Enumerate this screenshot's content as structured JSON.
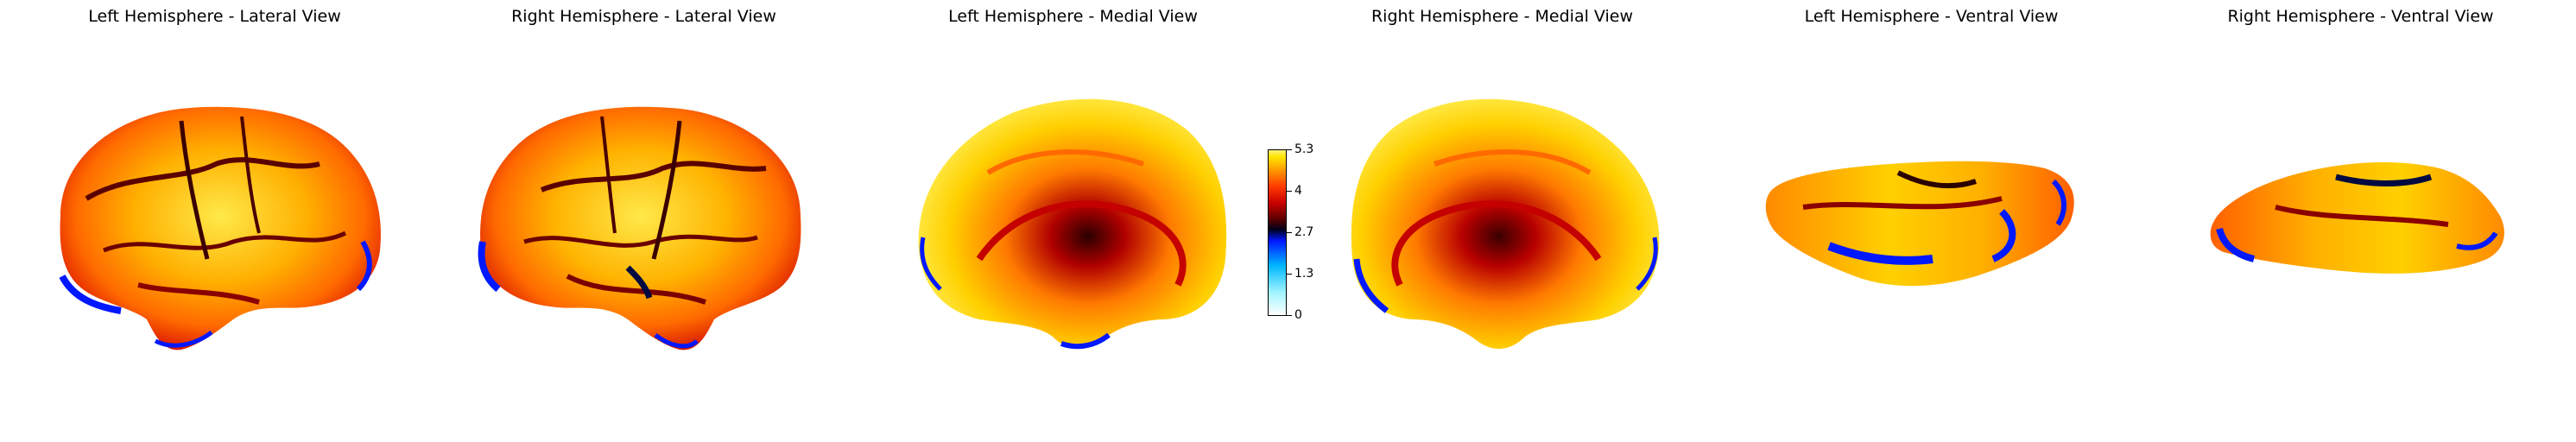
{
  "panels": [
    {
      "title": "Left Hemisphere - Lateral View",
      "view": "lateral-left"
    },
    {
      "title": "Right Hemisphere - Lateral View",
      "view": "lateral-right"
    },
    {
      "title": "Left Hemisphere - Medial View",
      "view": "medial-left"
    },
    {
      "title": "Right Hemisphere - Medial View",
      "view": "medial-right"
    },
    {
      "title": "Left Hemisphere - Ventral View",
      "view": "ventral-left"
    },
    {
      "title": "Right Hemisphere - Ventral View",
      "view": "ventral-right"
    }
  ],
  "colorbar": {
    "ticks": [
      "5.3",
      "4",
      "2.7",
      "1.3",
      "0"
    ],
    "min": 0,
    "max": 5.3,
    "colormap": "cold-hot (white-cyan-blue-black-red-orange-yellow)"
  },
  "colors": {
    "yellow": "#ffe600",
    "orange": "#ff8a00",
    "red": "#d80000",
    "dark": "#2a0000",
    "blue": "#0018ff"
  }
}
